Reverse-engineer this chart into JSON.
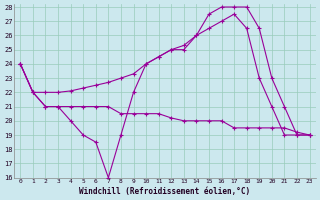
{
  "bg_color": "#cce8ee",
  "grid_color": "#99ccbb",
  "line_color": "#990099",
  "xlim": [
    -0.5,
    23.5
  ],
  "ylim": [
    16,
    28.2
  ],
  "yticks": [
    16,
    17,
    18,
    19,
    20,
    21,
    22,
    23,
    24,
    25,
    26,
    27,
    28
  ],
  "xticks": [
    0,
    1,
    2,
    3,
    4,
    5,
    6,
    7,
    8,
    9,
    10,
    11,
    12,
    13,
    14,
    15,
    16,
    17,
    18,
    19,
    20,
    21,
    22,
    23
  ],
  "xlabel": "Windchill (Refroidissement éolien,°C)",
  "line1_x": [
    0,
    1,
    2,
    3,
    4,
    5,
    6,
    7,
    8,
    9,
    10,
    11,
    12,
    13,
    14,
    15,
    16,
    17,
    18,
    19,
    20,
    21,
    22,
    23
  ],
  "line1_y": [
    24,
    22,
    21,
    21,
    20,
    19,
    18.5,
    16,
    19,
    22,
    24,
    24.5,
    25,
    25,
    26,
    27.5,
    28,
    28,
    28,
    26.5,
    23,
    21,
    19,
    19
  ],
  "line2_x": [
    0,
    1,
    2,
    3,
    4,
    5,
    6,
    7,
    8,
    9,
    10,
    11,
    12,
    13,
    14,
    15,
    16,
    17,
    18,
    19,
    20,
    21,
    22,
    23
  ],
  "line2_y": [
    24,
    22,
    22,
    22,
    22.1,
    22.3,
    22.5,
    22.7,
    23,
    23.3,
    24,
    24.5,
    25,
    25.3,
    26,
    26.5,
    27,
    27.5,
    26.5,
    23,
    21,
    19,
    19,
    19
  ],
  "line3_x": [
    0,
    1,
    2,
    3,
    4,
    5,
    6,
    7,
    8,
    9,
    10,
    11,
    12,
    13,
    14,
    15,
    16,
    17,
    18,
    19,
    20,
    21,
    22,
    23
  ],
  "line3_y": [
    24,
    22,
    21,
    21,
    21,
    21,
    21,
    21,
    20.5,
    20.5,
    20.5,
    20.5,
    20.2,
    20,
    20,
    20,
    20,
    19.5,
    19.5,
    19.5,
    19.5,
    19.5,
    19.2,
    19
  ]
}
